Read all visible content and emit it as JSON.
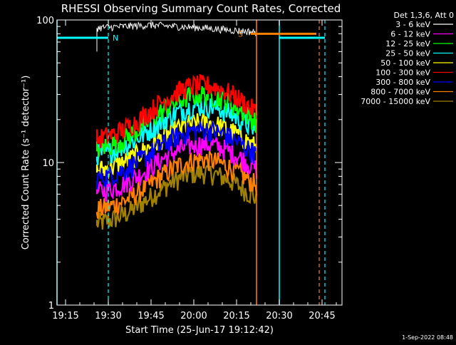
{
  "colors": {
    "background": "#000000",
    "foreground": "#ffffff",
    "N_marker": "#00ffff",
    "S_marker": "#ff8000"
  },
  "footer_timestamp": "1-Sep-2022 08:48",
  "chart_data": {
    "type": "line",
    "title": "RHESSI Observing Summary Count Rates, Corrected",
    "xlabel": "Start Time (25-Jun-17 19:12:42)",
    "ylabel": "Corrected Count Rate (s⁻¹ detector⁻¹)",
    "y_scale": "log",
    "xlim": [
      "19:12",
      "20:52"
    ],
    "ylim": [
      1,
      100
    ],
    "x_ticks": [
      "19:15",
      "19:30",
      "19:45",
      "20:00",
      "20:15",
      "20:30",
      "20:45"
    ],
    "y_ticks": [
      "1",
      "10",
      "100"
    ],
    "legend_position": "top-right",
    "legend_header": "Det 1,3,6, Att 0",
    "data_window": [
      "19:26",
      "20:22"
    ],
    "series": [
      {
        "name": "3 - 6 keV",
        "color": "#ffffff",
        "plateau": [
          88,
          92,
          88,
          82
        ]
      },
      {
        "name": "6 - 12 keV",
        "color": "#ff00ff",
        "base": 6.0,
        "peak": 13.5
      },
      {
        "name": "12 - 25 keV",
        "color": "#00ff00",
        "base": 12.0,
        "peak": 30.0
      },
      {
        "name": "25 - 50 keV",
        "color": "#00ffff",
        "base": 11.0,
        "peak": 25.0
      },
      {
        "name": "50 - 100 keV",
        "color": "#ffff00",
        "base": 8.5,
        "peak": 19.0
      },
      {
        "name": "100 - 300 keV",
        "color": "#ff0000",
        "base": 14.0,
        "peak": 35.0
      },
      {
        "name": "300 - 800 keV",
        "color": "#0000ff",
        "base": 7.5,
        "peak": 17.0
      },
      {
        "name": "800 - 7000 keV",
        "color": "#ff8000",
        "base": 4.5,
        "peak": 10.5
      },
      {
        "name": "7000 - 15000 keV",
        "color": "#a08000",
        "base": 3.6,
        "peak": 8.5
      }
    ],
    "annotations": [
      {
        "label": "N",
        "color": "#00ffff",
        "value": 75,
        "start": "19:12",
        "end": "19:30"
      },
      {
        "label": "",
        "color": "#00ffff",
        "value": 75,
        "start": "20:30",
        "end": "20:46"
      },
      {
        "label": "S",
        "color": "#ff8000",
        "value": 80,
        "start": "20:20",
        "end": "20:43"
      }
    ],
    "vertical_markers": [
      {
        "time": "19:12",
        "color": "#00ffff",
        "style": "solid"
      },
      {
        "time": "19:30",
        "color": "#00ffff",
        "style": "dashed"
      },
      {
        "time": "20:22",
        "color": "#ff8000",
        "style": "solid"
      },
      {
        "time": "20:30",
        "color": "#00ffff",
        "style": "solid"
      },
      {
        "time": "20:44",
        "color": "#ff8000",
        "style": "dashed"
      },
      {
        "time": "20:46",
        "color": "#00ffff",
        "style": "dashed"
      }
    ]
  }
}
